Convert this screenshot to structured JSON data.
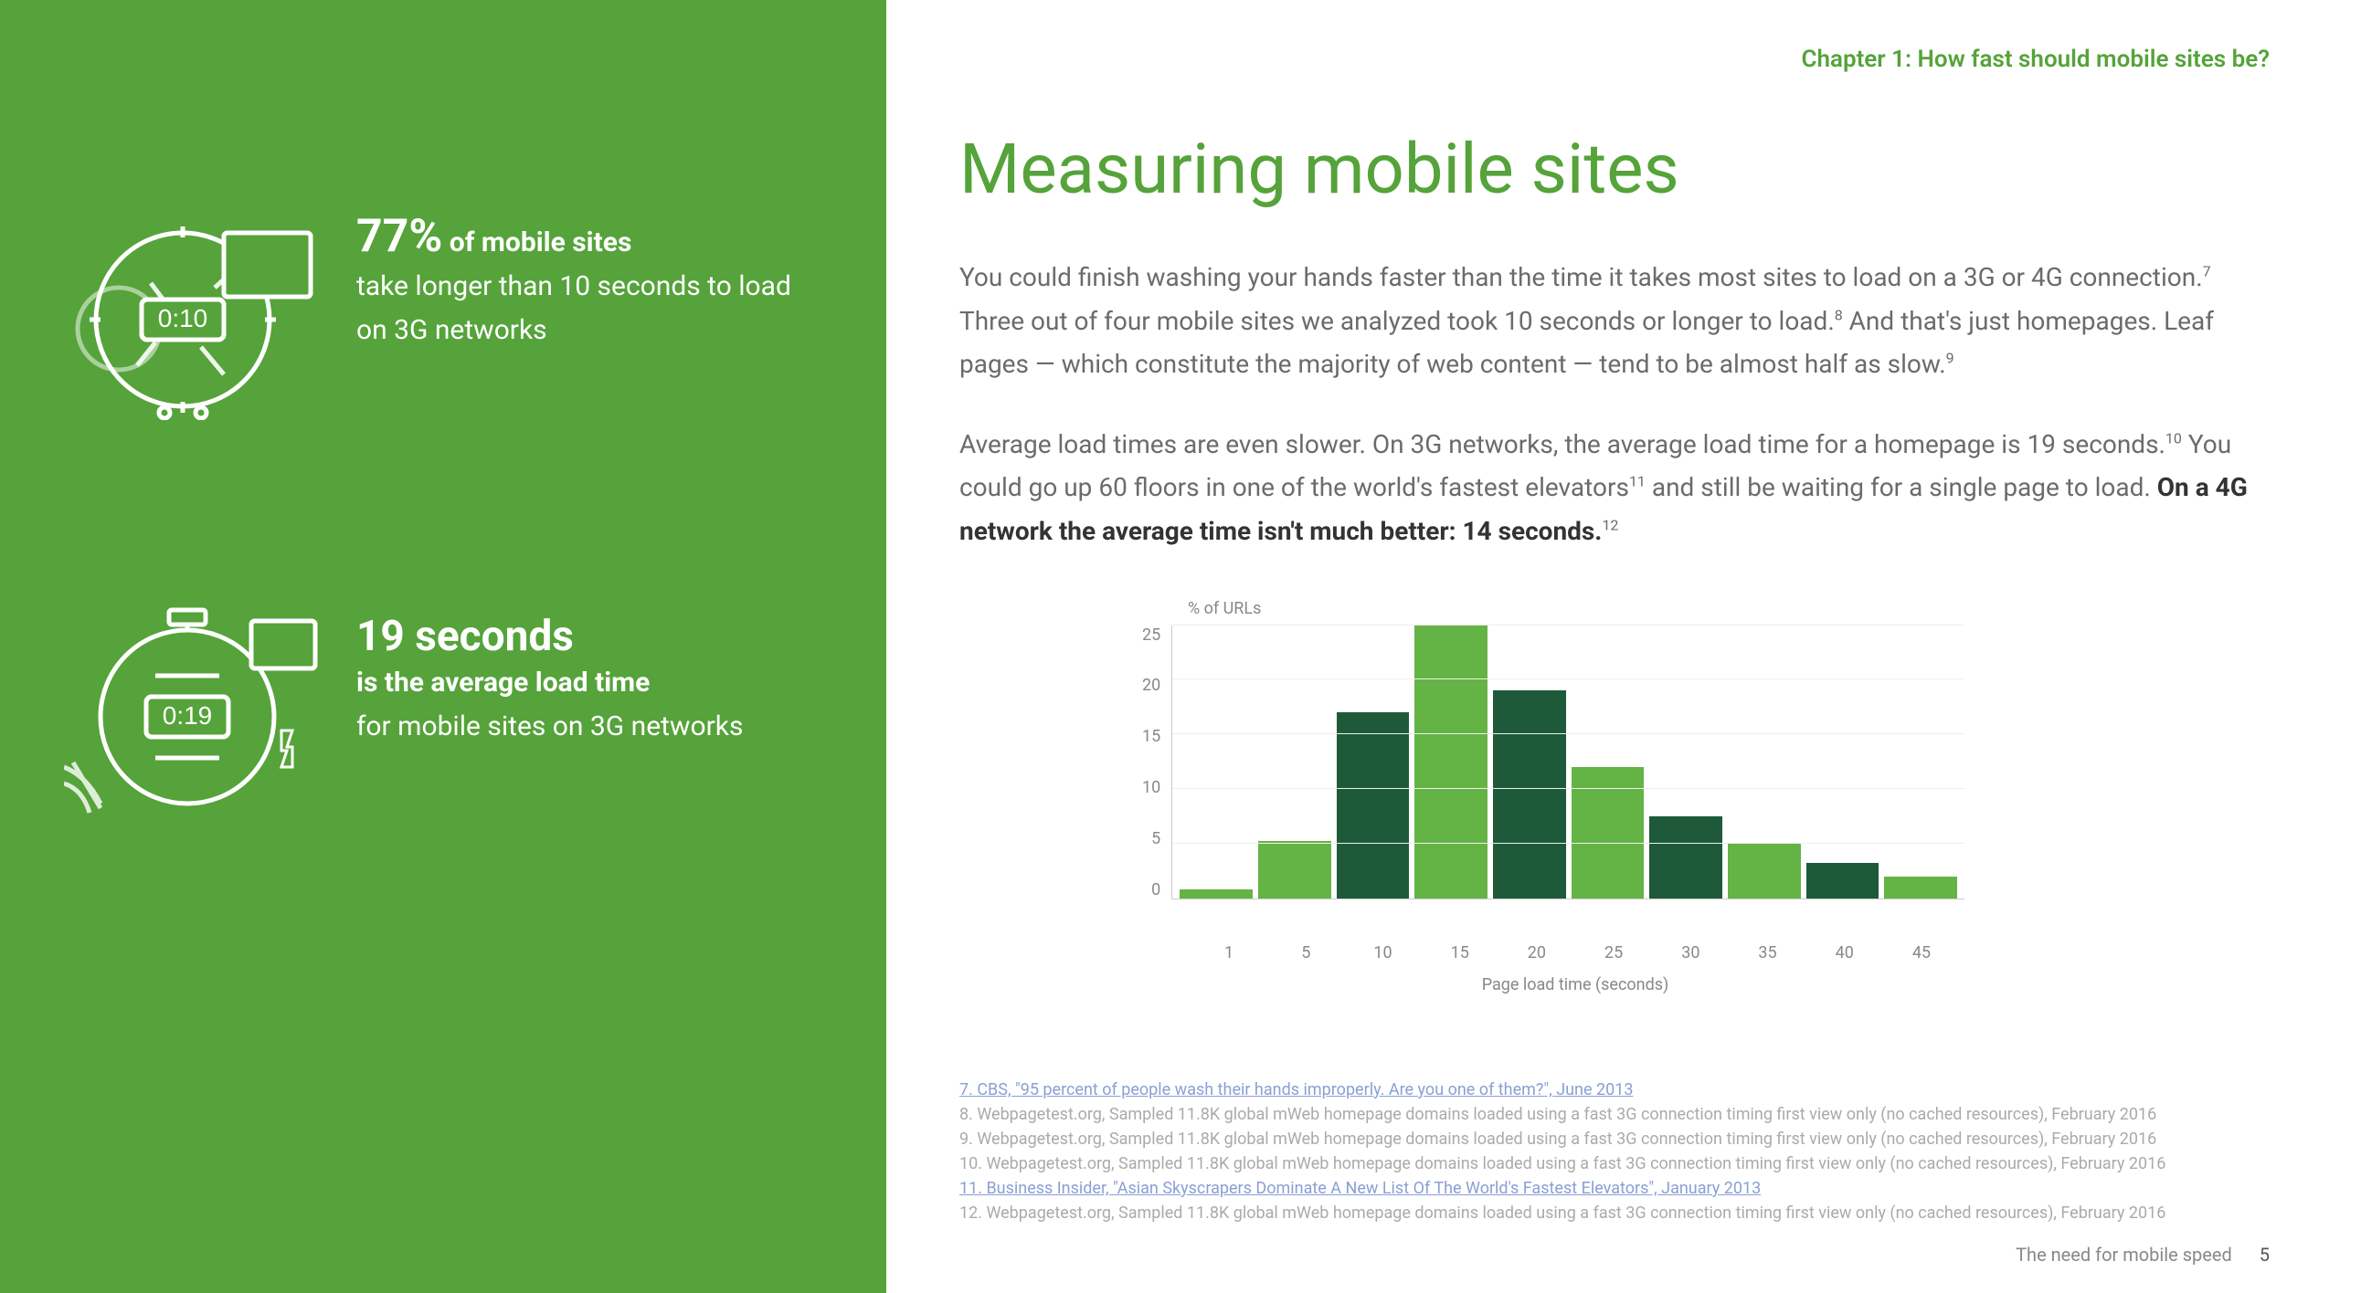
{
  "colors": {
    "sidebar_bg": "#55a33a",
    "accent": "#55a33a",
    "title": "#55a33a",
    "chapter": "#55a33a",
    "body_text": "#6b6b6b",
    "emphasis_text": "#333333",
    "footnote_text": "#aaaaaa",
    "footnote_link": "#8a9fd4",
    "white": "#ffffff",
    "grid": "#eeeeee",
    "axis": "#cccccc"
  },
  "sidebar": {
    "stat1": {
      "big": "77%",
      "rest_bold": " of mobile sites",
      "rest": "take longer than 10 seconds to load on 3G networks",
      "icon_time": "0:10"
    },
    "stat2": {
      "big": "19 seconds",
      "rest_bold": "is the average load time",
      "rest": "for mobile sites on 3G networks",
      "icon_time": "0:19"
    }
  },
  "main": {
    "chapter": "Chapter 1: How fast should mobile sites be?",
    "title": "Measuring mobile sites",
    "para1_a": "You could finish washing your hands faster than the time it takes most sites to load on a 3G or 4G connection.",
    "para1_sup1": "7",
    "para1_b": " Three out of four mobile sites we analyzed took 10 seconds or longer to load.",
    "para1_sup2": "8",
    "para1_c": " And that's just homepages. Leaf pages — which constitute the majority of web content — tend to be almost half as slow.",
    "para1_sup3": "9",
    "para2_a": "Average load times are even slower. On 3G networks, the average load time for a homepage is 19 seconds.",
    "para2_sup1": "10",
    "para2_b": " You could go up 60 floors in one of the world's fastest elevators",
    "para2_sup2": "11",
    "para2_c": " and still be waiting for a single page to load. ",
    "para2_bold": "On a 4G network the average time isn't much better: 14 seconds.",
    "para2_sup3": "12"
  },
  "chart": {
    "type": "bar",
    "ylabel": "% of URLs",
    "xlabel": "Page load time (seconds)",
    "ylim": [
      0,
      25
    ],
    "ytick_step": 5,
    "yticks": [
      "25",
      "20",
      "15",
      "10",
      "5",
      "0"
    ],
    "categories": [
      "1",
      "5",
      "10",
      "15",
      "20",
      "25",
      "30",
      "35",
      "40",
      "45"
    ],
    "values": [
      0.8,
      5.2,
      17.0,
      25.0,
      19.0,
      12.0,
      7.5,
      5.0,
      3.2,
      2.0
    ],
    "bar_colors": [
      "#64b445",
      "#64b445",
      "#1e5a3a",
      "#64b445",
      "#1e5a3a",
      "#64b445",
      "#1e5a3a",
      "#64b445",
      "#1e5a3a",
      "#64b445"
    ],
    "background_color": "#ffffff",
    "grid_color": "#eeeeee",
    "axis_color": "#cccccc",
    "tick_fontsize": 18,
    "label_fontsize": 18,
    "bar_width": 0.94
  },
  "footnotes": {
    "f7": "7. CBS, \"95 percent of people wash their hands improperly. Are you one of them?\", June 2013",
    "f8": "8. Webpagetest.org, Sampled 11.8K global mWeb homepage domains loaded using a fast 3G connection timing first view only (no cached resources), February 2016",
    "f9": "9. Webpagetest.org, Sampled 11.8K global mWeb homepage domains loaded using a fast 3G connection timing first view only (no cached resources), February 2016",
    "f10": "10. Webpagetest.org, Sampled 11.8K global mWeb homepage domains loaded using a fast 3G connection timing first view only (no cached resources), February 2016",
    "f11": "11. Business Insider, \"Asian Skyscrapers Dominate A New List Of The World's Fastest Elevators\", January 2013",
    "f12": "12. Webpagetest.org, Sampled 11.8K global mWeb homepage domains loaded using a fast 3G connection timing first view only (no cached resources), February 2016"
  },
  "footer": {
    "tagline": "The need for mobile speed",
    "page": "5"
  }
}
